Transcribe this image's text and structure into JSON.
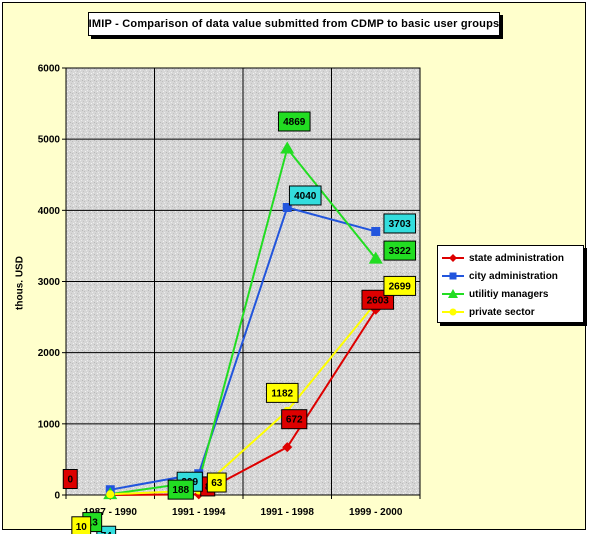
{
  "chart_data": {
    "type": "line",
    "title": "IMIP - Comparison of data value submitted from CDMP to basic user groups",
    "ylabel": "thous. USD",
    "xlabel": "",
    "categories": [
      "1987 - 1990",
      "1991 - 1994",
      "1991 - 1998",
      "1999 - 2000"
    ],
    "ylim": [
      0,
      6000
    ],
    "yticks": [
      "0",
      "1000",
      "2000",
      "3000",
      "4000",
      "5000",
      "6000"
    ],
    "grid": true,
    "legend_position": "right",
    "series": [
      {
        "name": "state administration",
        "values": [
          0,
          8,
          672,
          2603
        ],
        "labels": [
          "0",
          "8",
          "672",
          "2603"
        ],
        "color": "#dd0000",
        "label_bg": "#dd0000",
        "marker": "diamond"
      },
      {
        "name": "city administration",
        "values": [
          74,
          299,
          4040,
          3703
        ],
        "labels": [
          "74",
          "299",
          "4040",
          "3703"
        ],
        "color": "#2255dd",
        "label_bg": "#33dddd",
        "marker": "square"
      },
      {
        "name": "utilitiy managers",
        "values": [
          13,
          188,
          4869,
          3322
        ],
        "labels": [
          "13",
          "188",
          "4869",
          "3322"
        ],
        "color": "#22dd22",
        "label_bg": "#22dd22",
        "marker": "triangle"
      },
      {
        "name": "private sector",
        "values": [
          10,
          63,
          1182,
          2699
        ],
        "labels": [
          "10",
          "63",
          "1182",
          "2699"
        ],
        "color": "#ffff00",
        "label_bg": "#ffff00",
        "marker": "circle"
      }
    ]
  }
}
